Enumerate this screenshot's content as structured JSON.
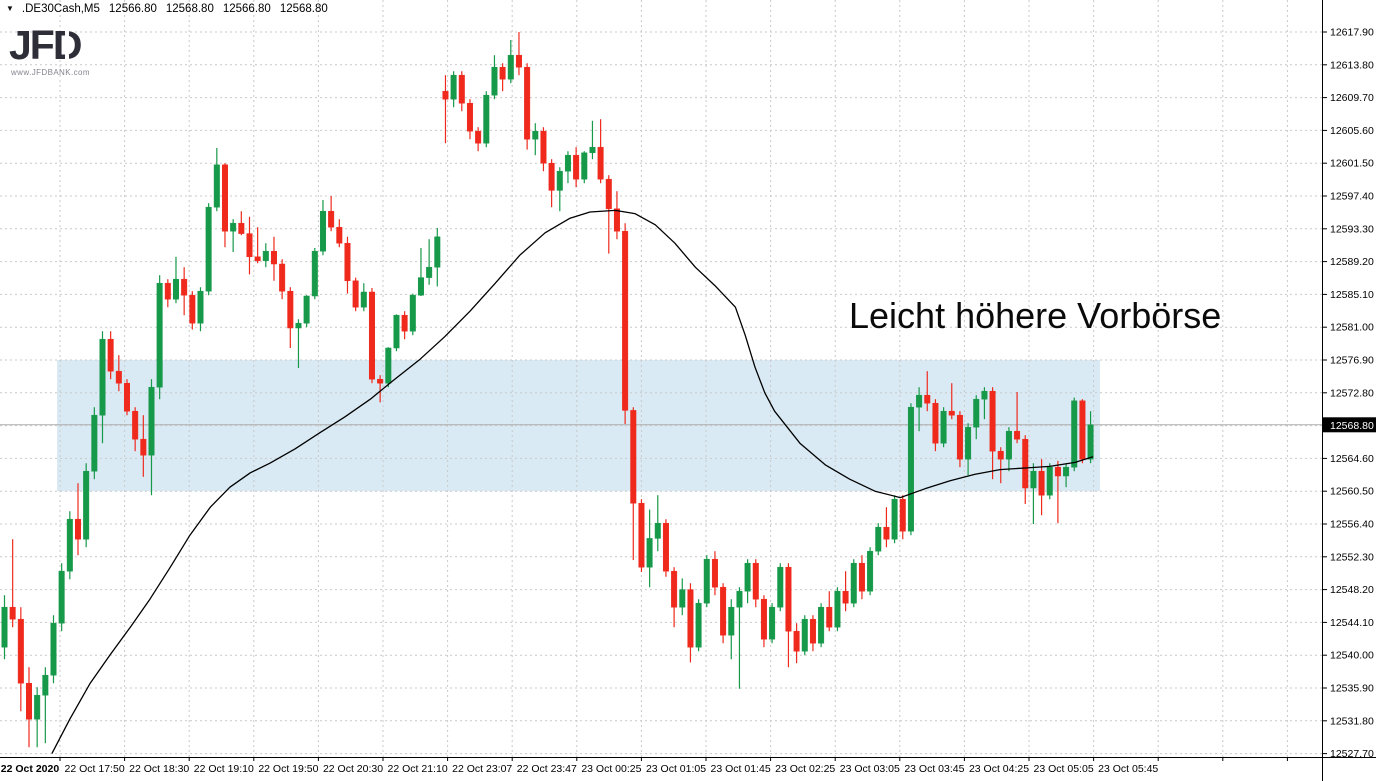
{
  "header": {
    "expander": "▼",
    "symbol": ".DE30Cash,M5",
    "open": "12566.80",
    "high": "12568.80",
    "low": "12566.80",
    "close": "12568.80"
  },
  "logo": {
    "text": "JFD",
    "website": "www.JFDBANK.com"
  },
  "annotation": {
    "text": "Leicht höhere Vorbörse"
  },
  "colors": {
    "bull": "#17994a",
    "bear": "#ef2a1d",
    "zone": "#d9eaf4",
    "ma": "#000000",
    "grid": "#c9c9c9",
    "price_line": "#adadad",
    "axis_line": "#000000",
    "tag_bg": "#000000",
    "tag_fg": "#ffffff",
    "axis_text": "#000000"
  },
  "chart_data": {
    "type": "candlestick",
    "symbol": ".DE30Cash",
    "timeframe": "M5",
    "current_price": 12568.8,
    "current_price_label": "12568.80",
    "y_axis": {
      "max": 12617.9,
      "min": 12527.7,
      "tick_step": 4.1,
      "tick_labels": [
        "12617.90",
        "12613.80",
        "12609.70",
        "12605.60",
        "12601.50",
        "12597.40",
        "12593.30",
        "12589.20",
        "12585.10",
        "12581.00",
        "12576.90",
        "12572.80",
        "12568.70",
        "12564.60",
        "12560.50",
        "12556.40",
        "12552.30",
        "12548.20",
        "12544.10",
        "12540.00",
        "12535.90",
        "12531.80",
        "12527.70"
      ]
    },
    "x_axis": {
      "tick_labels": [
        "22 Oct 2020",
        "22 Oct 17:50",
        "22 Oct 18:30",
        "22 Oct 19:10",
        "22 Oct 19:50",
        "22 Oct 20:30",
        "22 Oct 21:10",
        "22 Oct 23:07",
        "22 Oct 23:47",
        "23 Oct 00:25",
        "23 Oct 01:05",
        "23 Oct 01:45",
        "23 Oct 02:25",
        "23 Oct 03:05",
        "23 Oct 03:45",
        "23 Oct 04:25",
        "23 Oct 05:05",
        "23 Oct 05:45"
      ]
    },
    "highlight_zone": {
      "price_top": 12576.9,
      "price_bottom": 12560.5
    },
    "candles": [
      [
        12541.0,
        12547.5,
        12539.5,
        12546.0
      ],
      [
        12546.0,
        12554.5,
        12543.5,
        12544.5
      ],
      [
        12544.5,
        12546.0,
        12533.0,
        12536.5
      ],
      [
        12536.5,
        12538.5,
        12528.5,
        12532.0
      ],
      [
        12532.0,
        12536.0,
        12528.5,
        12535.0
      ],
      [
        12535.0,
        12538.5,
        12529.0,
        12537.5
      ],
      [
        12537.5,
        12545.0,
        12536.5,
        12544.0
      ],
      [
        12544.0,
        12551.5,
        12543.0,
        12550.5
      ],
      [
        12550.5,
        12558.0,
        12549.5,
        12557.0
      ],
      [
        12557.0,
        12561.5,
        12552.5,
        12554.5
      ],
      [
        12554.5,
        12564.0,
        12553.5,
        12563.0
      ],
      [
        12563.0,
        12571.0,
        12562.0,
        12570.0
      ],
      [
        12570.0,
        12580.5,
        12566.5,
        12579.5
      ],
      [
        12579.5,
        12580.5,
        12574.5,
        12575.5
      ],
      [
        12575.5,
        12577.5,
        12573.0,
        12574.0
      ],
      [
        12574.0,
        12574.5,
        12570.0,
        12570.5
      ],
      [
        12570.5,
        12571.0,
        12565.5,
        12567.0
      ],
      [
        12567.0,
        12570.0,
        12562.3,
        12565.0
      ],
      [
        12565.0,
        12574.5,
        12560.0,
        12573.5
      ],
      [
        12573.5,
        12587.5,
        12572.0,
        12586.5
      ],
      [
        12586.5,
        12587.0,
        12583.5,
        12584.5
      ],
      [
        12584.5,
        12589.8,
        12584.0,
        12587.0
      ],
      [
        12587.0,
        12588.5,
        12582.5,
        12585.0
      ],
      [
        12585.0,
        12585.5,
        12580.7,
        12581.5
      ],
      [
        12581.5,
        12586.0,
        12580.5,
        12585.5
      ],
      [
        12585.5,
        12596.5,
        12585.0,
        12596.0
      ],
      [
        12596.0,
        12603.4,
        12595.5,
        12601.3
      ],
      [
        12601.3,
        12601.5,
        12591.0,
        12593.0
      ],
      [
        12593.0,
        12594.5,
        12590.4,
        12594.0
      ],
      [
        12594.0,
        12595.5,
        12592.5,
        12592.7
      ],
      [
        12592.7,
        12594.8,
        12587.6,
        12589.8
      ],
      [
        12589.8,
        12593.5,
        12589.0,
        12589.3
      ],
      [
        12589.3,
        12591.5,
        12588.5,
        12590.5
      ],
      [
        12590.5,
        12592.3,
        12586.8,
        12588.9
      ],
      [
        12588.9,
        12589.5,
        12584.5,
        12585.5
      ],
      [
        12585.5,
        12586.0,
        12578.4,
        12580.9
      ],
      [
        12580.9,
        12582.0,
        12575.9,
        12581.5
      ],
      [
        12581.5,
        12585.0,
        12581.0,
        12584.9
      ],
      [
        12584.9,
        12590.9,
        12584.5,
        12590.5
      ],
      [
        12590.5,
        12596.9,
        12590.0,
        12595.5
      ],
      [
        12595.5,
        12597.4,
        12593.0,
        12593.5
      ],
      [
        12593.5,
        12594.5,
        12591.0,
        12591.5
      ],
      [
        12591.5,
        12592.3,
        12585.2,
        12586.8
      ],
      [
        12586.8,
        12587.2,
        12583.0,
        12583.5
      ],
      [
        12583.5,
        12586.5,
        12583.0,
        12585.4
      ],
      [
        12585.4,
        12585.9,
        12574.0,
        12574.5
      ],
      [
        12574.5,
        12575.0,
        12571.6,
        12574.0
      ],
      [
        12574.0,
        12578.5,
        12573.5,
        12578.4
      ],
      [
        12578.4,
        12582.6,
        12578.0,
        12582.5
      ],
      [
        12582.5,
        12583.0,
        12579.5,
        12580.5
      ],
      [
        12580.5,
        12585.2,
        12580.0,
        12585.0
      ],
      [
        12585.0,
        12590.9,
        12584.9,
        12587.2
      ],
      [
        12587.2,
        12592.0,
        12586.3,
        12588.5
      ],
      [
        12588.5,
        12593.4,
        12586.1,
        12592.3
      ],
      [
        12610.5,
        12612.5,
        12604.0,
        12609.5
      ],
      [
        12609.5,
        12613.0,
        12608.5,
        12612.5
      ],
      [
        12612.5,
        12613.0,
        12608.0,
        12609.0
      ],
      [
        12609.0,
        12609.5,
        12604.5,
        12605.5
      ],
      [
        12605.5,
        12606.0,
        12603.0,
        12604.0
      ],
      [
        12604.0,
        12610.5,
        12603.5,
        12610.0
      ],
      [
        12610.0,
        12615.0,
        12609.5,
        12613.5
      ],
      [
        12613.5,
        12614.0,
        12610.5,
        12612.0
      ],
      [
        12612.0,
        12616.9,
        12611.5,
        12615.0
      ],
      [
        12615.0,
        12617.9,
        12612.5,
        12613.5
      ],
      [
        12613.5,
        12614.0,
        12603.2,
        12604.5
      ],
      [
        12604.5,
        12606.5,
        12602.5,
        12605.5
      ],
      [
        12605.5,
        12606.0,
        12600.5,
        12601.5
      ],
      [
        12601.5,
        12602.0,
        12596.0,
        12598.1
      ],
      [
        12598.1,
        12601.0,
        12595.5,
        12600.5
      ],
      [
        12600.5,
        12603.0,
        12599.0,
        12602.5
      ],
      [
        12602.5,
        12603.5,
        12598.5,
        12599.5
      ],
      [
        12599.5,
        12603.0,
        12599.0,
        12602.8
      ],
      [
        12602.8,
        12606.8,
        12602.0,
        12603.5
      ],
      [
        12603.5,
        12607.0,
        12599.0,
        12599.5
      ],
      [
        12599.5,
        12600.0,
        12590.2,
        12595.8
      ],
      [
        12595.8,
        12598.0,
        12592.0,
        12593.0
      ],
      [
        12593.0,
        12594.0,
        12568.9,
        12570.6
      ],
      [
        12570.6,
        12571.0,
        12551.9,
        12559.0
      ],
      [
        12559.0,
        12559.5,
        12550.4,
        12551.0
      ],
      [
        12551.0,
        12558.2,
        12548.5,
        12554.6
      ],
      [
        12554.6,
        12560.0,
        12553.0,
        12556.5
      ],
      [
        12556.5,
        12557.0,
        12549.8,
        12550.5
      ],
      [
        12550.5,
        12551.0,
        12543.5,
        12546.0
      ],
      [
        12546.0,
        12549.6,
        12545.0,
        12548.2
      ],
      [
        12548.2,
        12549.0,
        12539.1,
        12541.0
      ],
      [
        12541.0,
        12547.0,
        12540.5,
        12546.5
      ],
      [
        12546.5,
        12552.5,
        12546.0,
        12552.0
      ],
      [
        12552.0,
        12553.0,
        12547.5,
        12548.5
      ],
      [
        12548.5,
        12549.0,
        12541.5,
        12542.5
      ],
      [
        12542.5,
        12547.0,
        12539.5,
        12546.0
      ],
      [
        12546.0,
        12548.5,
        12535.8,
        12548.0
      ],
      [
        12548.0,
        12552.0,
        12546.5,
        12551.5
      ],
      [
        12551.5,
        12552.0,
        12546.0,
        12547.0
      ],
      [
        12547.0,
        12547.5,
        12541.0,
        12542.0
      ],
      [
        12542.0,
        12546.5,
        12541.5,
        12546.0
      ],
      [
        12546.0,
        12551.5,
        12545.5,
        12551.0
      ],
      [
        12551.0,
        12551.5,
        12538.5,
        12543.0
      ],
      [
        12543.0,
        12544.0,
        12539.0,
        12540.5
      ],
      [
        12540.5,
        12545.0,
        12540.0,
        12544.5
      ],
      [
        12544.5,
        12545.0,
        12540.5,
        12541.5
      ],
      [
        12541.5,
        12546.5,
        12541.0,
        12546.0
      ],
      [
        12546.0,
        12548.0,
        12543.0,
        12543.5
      ],
      [
        12543.5,
        12548.5,
        12543.0,
        12548.0
      ],
      [
        12548.0,
        12550.5,
        12545.5,
        12546.5
      ],
      [
        12546.5,
        12552.0,
        12546.0,
        12551.5
      ],
      [
        12551.5,
        12552.5,
        12547.0,
        12548.0
      ],
      [
        12548.0,
        12553.5,
        12547.5,
        12553.0
      ],
      [
        12553.0,
        12556.5,
        12552.5,
        12556.0
      ],
      [
        12556.0,
        12558.5,
        12553.5,
        12554.5
      ],
      [
        12554.5,
        12560.0,
        12554.0,
        12559.5
      ],
      [
        12559.5,
        12560.0,
        12554.5,
        12555.5
      ],
      [
        12555.5,
        12571.5,
        12555.0,
        12571.0
      ],
      [
        12571.0,
        12573.5,
        12568.0,
        12572.5
      ],
      [
        12572.5,
        12575.5,
        12570.5,
        12571.5
      ],
      [
        12571.5,
        12572.0,
        12565.5,
        12566.5
      ],
      [
        12566.5,
        12571.0,
        12566.0,
        12570.5
      ],
      [
        12570.5,
        12574.0,
        12569.5,
        12570.0
      ],
      [
        12570.0,
        12570.5,
        12563.5,
        12564.5
      ],
      [
        12564.5,
        12569.0,
        12562.5,
        12568.5
      ],
      [
        12568.5,
        12572.5,
        12567.0,
        12572.0
      ],
      [
        12572.0,
        12573.5,
        12569.5,
        12573.0
      ],
      [
        12573.0,
        12573.5,
        12562.0,
        12565.5
      ],
      [
        12565.5,
        12566.0,
        12561.5,
        12564.5
      ],
      [
        12564.5,
        12568.5,
        12563.0,
        12568.0
      ],
      [
        12568.0,
        12572.9,
        12566.5,
        12567.0
      ],
      [
        12567.0,
        12567.5,
        12558.9,
        12560.9
      ],
      [
        12560.9,
        12564.0,
        12556.4,
        12563.0
      ],
      [
        12563.0,
        12564.5,
        12557.5,
        12560.0
      ],
      [
        12560.0,
        12564.0,
        12559.5,
        12563.5
      ],
      [
        12563.5,
        12564.3,
        12556.5,
        12562.4
      ],
      [
        12562.4,
        12564.0,
        12561.0,
        12563.5
      ],
      [
        12563.5,
        12572.2,
        12563.0,
        12571.8
      ],
      [
        12571.8,
        12572.0,
        12564.0,
        12564.5
      ],
      [
        12564.5,
        12570.5,
        12564.0,
        12568.8
      ]
    ],
    "ma_points": [
      [
        5.8,
        12527.7
      ],
      [
        8.0,
        12532.0
      ],
      [
        10.5,
        12536.5
      ],
      [
        12.9,
        12540.0
      ],
      [
        15.4,
        12543.5
      ],
      [
        17.8,
        12547.0
      ],
      [
        20.3,
        12551.0
      ],
      [
        22.7,
        12555.0
      ],
      [
        25.2,
        12558.5
      ],
      [
        27.6,
        12561.0
      ],
      [
        30.1,
        12562.8
      ],
      [
        32.5,
        12564.0
      ],
      [
        35.6,
        12565.8
      ],
      [
        38.6,
        12567.8
      ],
      [
        41.7,
        12569.8
      ],
      [
        44.8,
        12572.0
      ],
      [
        47.8,
        12574.5
      ],
      [
        50.9,
        12577.0
      ],
      [
        53.9,
        12579.8
      ],
      [
        57.0,
        12583.0
      ],
      [
        60.1,
        12586.5
      ],
      [
        63.1,
        12590.0
      ],
      [
        66.2,
        12592.8
      ],
      [
        69.2,
        12594.6
      ],
      [
        71.7,
        12595.4
      ],
      [
        74.8,
        12595.6
      ],
      [
        77.2,
        12595.2
      ],
      [
        79.7,
        12593.8
      ],
      [
        82.1,
        12591.5
      ],
      [
        84.6,
        12588.5
      ],
      [
        87.0,
        12586.2
      ],
      [
        89.5,
        12583.5
      ],
      [
        90.7,
        12580.0
      ],
      [
        91.9,
        12576.0
      ],
      [
        93.1,
        12572.8
      ],
      [
        94.3,
        12570.5
      ],
      [
        97.4,
        12566.5
      ],
      [
        100.5,
        12563.8
      ],
      [
        103.5,
        12562.0
      ],
      [
        106.6,
        12560.5
      ],
      [
        109.7,
        12559.7
      ],
      [
        112.7,
        12560.8
      ],
      [
        115.8,
        12561.8
      ],
      [
        118.8,
        12562.6
      ],
      [
        121.9,
        12563.2
      ],
      [
        125.0,
        12563.4
      ],
      [
        128.0,
        12563.6
      ],
      [
        131.1,
        12564.1
      ],
      [
        133.3,
        12564.8
      ]
    ]
  }
}
